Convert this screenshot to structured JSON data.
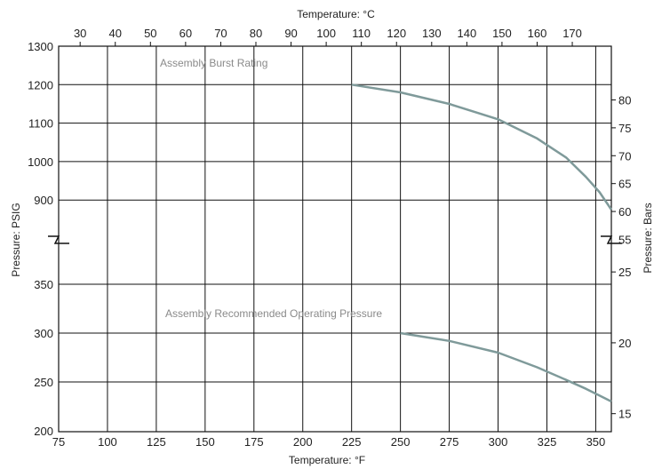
{
  "chart_data": {
    "type": "line",
    "title": "",
    "xlabel": "Temperature: °F",
    "x2label": "Temperature: °C",
    "ylabel": "Pressure: PSIG",
    "y2label": "Pressure: Bars",
    "xlim": [
      75,
      358
    ],
    "x_ticks": [
      75,
      100,
      125,
      150,
      175,
      200,
      225,
      250,
      275,
      300,
      325,
      350
    ],
    "x2_ticks": [
      30,
      40,
      50,
      60,
      70,
      80,
      90,
      100,
      110,
      120,
      130,
      140,
      150,
      160,
      170
    ],
    "y_upper_ticks": [
      900,
      1000,
      1100,
      1200,
      1300
    ],
    "y_lower_ticks": [
      200,
      250,
      300,
      350
    ],
    "y2_upper_ticks": [
      55,
      60,
      65,
      70,
      75,
      80
    ],
    "y2_lower_ticks": [
      15,
      20,
      25
    ],
    "grid": true,
    "axis_break": true,
    "series": [
      {
        "name": "Assembly Burst Rating",
        "color": "#7f9a9a",
        "x": [
          225,
          250,
          275,
          300,
          320,
          335,
          345,
          352,
          358
        ],
        "y": [
          1200,
          1180,
          1150,
          1110,
          1060,
          1010,
          960,
          920,
          875
        ]
      },
      {
        "name": "Assembly Recommended Operating Pressure",
        "color": "#7f9a9a",
        "x": [
          250,
          275,
          300,
          320,
          335,
          345,
          352,
          358
        ],
        "y": [
          300,
          292,
          280,
          265,
          252,
          243,
          236,
          230
        ]
      }
    ]
  }
}
